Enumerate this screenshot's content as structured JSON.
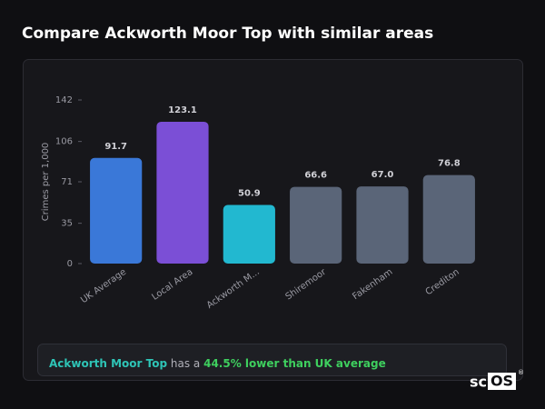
{
  "page_title": "Compare Ackworth Moor Top with similar areas",
  "chart_data": {
    "type": "bar",
    "y_label": "Crimes per 1,000",
    "categories": [
      "UK Average",
      "Local Area",
      "Ackworth M...",
      "Shiremoor",
      "Fakenham",
      "Crediton"
    ],
    "values": [
      91.7,
      123.1,
      50.9,
      66.6,
      67.0,
      76.8
    ],
    "value_labels": [
      "91.7",
      "123.1",
      "50.9",
      "66.6",
      "67.0",
      "76.8"
    ],
    "colors": [
      "#3a78d8",
      "#7b4fd6",
      "#22b8d0",
      "#5a6578",
      "#5a6578",
      "#5a6578"
    ],
    "ylim": [
      0,
      142
    ],
    "yticks": [
      0,
      35,
      71,
      106,
      142
    ],
    "grid": false
  },
  "summary": {
    "area": "Ackworth Moor Top",
    "middle": "has a",
    "highlight": "44.5% lower than UK average"
  },
  "logo": {
    "left": "sc",
    "right": "OS",
    "mark": "®"
  }
}
